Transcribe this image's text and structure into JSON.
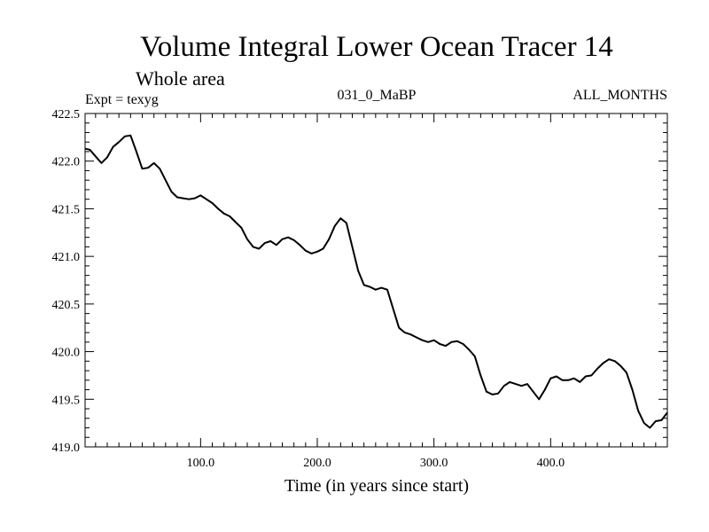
{
  "chart_data": {
    "type": "line",
    "title": "Volume Integral Lower Ocean Tracer 14",
    "subtitle": "Whole area",
    "expt_label": "Expt = texyg",
    "center_label": "031_0_MaBP",
    "right_label": "ALL_MONTHS",
    "xlabel": "Time (in years since start)",
    "ylabel": "",
    "xlim": [
      1,
      500
    ],
    "ylim": [
      419.0,
      422.5
    ],
    "xticks": [
      {
        "value": 100,
        "label": "100.0"
      },
      {
        "value": 200,
        "label": "200.0"
      },
      {
        "value": 300,
        "label": "300.0"
      },
      {
        "value": 400,
        "label": "400.0"
      }
    ],
    "yticks": [
      {
        "value": 419.0,
        "label": "419.0"
      },
      {
        "value": 419.5,
        "label": "419.5"
      },
      {
        "value": 420.0,
        "label": "420.0"
      },
      {
        "value": 420.5,
        "label": "420.5"
      },
      {
        "value": 421.0,
        "label": "421.0"
      },
      {
        "value": 421.5,
        "label": "421.5"
      },
      {
        "value": 422.0,
        "label": "422.0"
      },
      {
        "value": 422.5,
        "label": "422.5"
      }
    ],
    "grid": false,
    "series": [
      {
        "color": "#000000",
        "x": [
          1,
          5,
          10,
          15,
          20,
          25,
          30,
          35,
          40,
          45,
          50,
          55,
          60,
          65,
          70,
          75,
          80,
          85,
          90,
          95,
          100,
          105,
          110,
          115,
          120,
          125,
          130,
          135,
          140,
          145,
          150,
          155,
          160,
          165,
          170,
          175,
          180,
          185,
          190,
          195,
          200,
          205,
          210,
          215,
          220,
          225,
          230,
          235,
          240,
          245,
          250,
          255,
          260,
          265,
          270,
          275,
          280,
          285,
          290,
          295,
          300,
          305,
          310,
          315,
          320,
          325,
          330,
          335,
          340,
          345,
          350,
          355,
          360,
          365,
          370,
          375,
          380,
          385,
          390,
          395,
          400,
          405,
          410,
          415,
          420,
          425,
          430,
          435,
          440,
          445,
          450,
          455,
          460,
          465,
          470,
          475,
          480,
          485,
          490,
          495,
          500
        ],
        "y": [
          422.13,
          422.12,
          422.05,
          421.98,
          422.04,
          422.15,
          422.2,
          422.26,
          422.27,
          422.1,
          421.92,
          421.93,
          421.98,
          421.92,
          421.8,
          421.68,
          421.62,
          421.61,
          421.6,
          421.61,
          421.64,
          421.6,
          421.56,
          421.5,
          421.45,
          421.42,
          421.36,
          421.3,
          421.18,
          421.1,
          421.08,
          421.14,
          421.16,
          421.12,
          421.18,
          421.2,
          421.17,
          421.12,
          421.06,
          421.03,
          421.05,
          421.08,
          421.18,
          421.32,
          421.4,
          421.35,
          421.1,
          420.85,
          420.7,
          420.68,
          420.65,
          420.67,
          420.65,
          420.45,
          420.25,
          420.2,
          420.18,
          420.15,
          420.12,
          420.1,
          420.12,
          420.08,
          420.06,
          420.1,
          420.11,
          420.08,
          420.02,
          419.95,
          419.75,
          419.58,
          419.55,
          419.56,
          419.64,
          419.68,
          419.66,
          419.64,
          419.66,
          419.58,
          419.5,
          419.6,
          419.72,
          419.74,
          419.7,
          419.7,
          419.72,
          419.68,
          419.74,
          419.75,
          419.82,
          419.88,
          419.92,
          419.9,
          419.85,
          419.78,
          419.6,
          419.38,
          419.25,
          419.2,
          419.27,
          419.28,
          419.36
        ]
      }
    ]
  }
}
